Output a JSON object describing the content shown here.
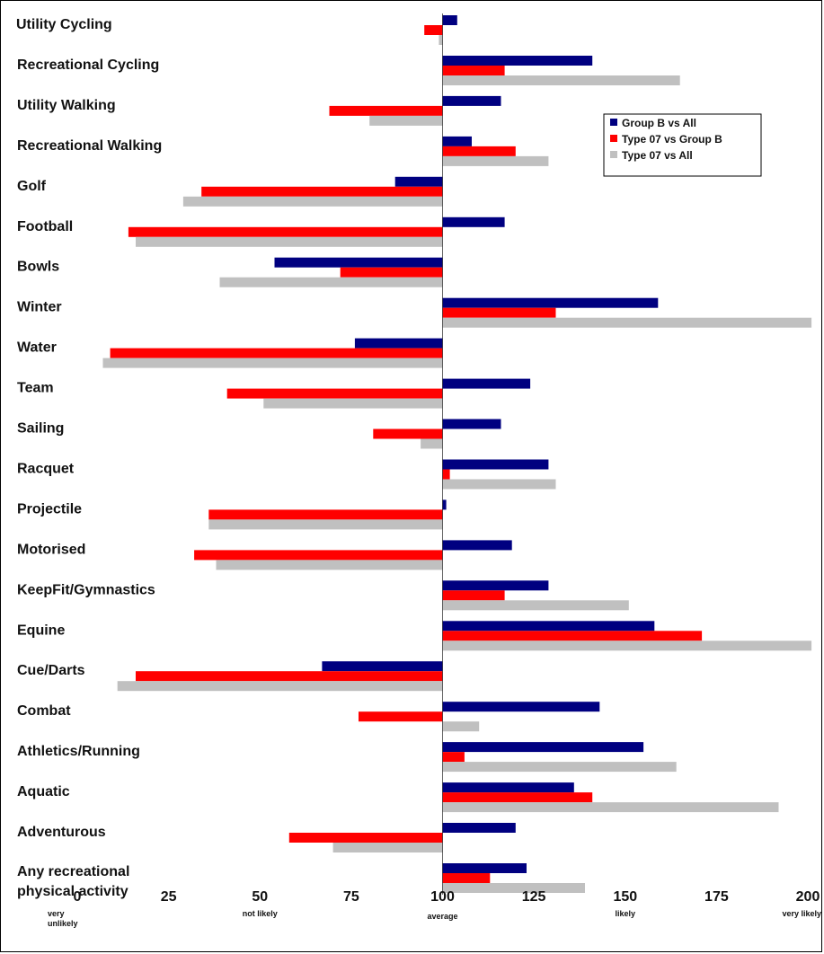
{
  "chart_data": {
    "type": "bar",
    "orientation": "horizontal",
    "baseline": 100,
    "xlim": [
      0,
      200
    ],
    "xticks": [
      "0",
      "25",
      "50",
      "75",
      "100",
      "125",
      "150",
      "175",
      "200"
    ],
    "annotations": [
      {
        "x": 0,
        "text": [
          "very",
          "unlikely"
        ]
      },
      {
        "x": 50,
        "text": [
          "not likely"
        ]
      },
      {
        "x": 100,
        "text": [
          "average"
        ]
      },
      {
        "x": 150,
        "text": [
          "likely"
        ]
      },
      {
        "x": 200,
        "text": [
          "very likely"
        ]
      }
    ],
    "categories": [
      [
        "Utility Cycling"
      ],
      [
        "Recreational Cycling"
      ],
      [
        "Utility Walking"
      ],
      [
        "Recreational Walking"
      ],
      [
        "Golf"
      ],
      [
        "Football"
      ],
      [
        "Bowls"
      ],
      [
        "Winter"
      ],
      [
        "Water"
      ],
      [
        "Team"
      ],
      [
        "Sailing"
      ],
      [
        "Racquet"
      ],
      [
        "Projectile"
      ],
      [
        "Motorised"
      ],
      [
        "KeepFit/Gymnastics"
      ],
      [
        "Equine"
      ],
      [
        "Cue/Darts"
      ],
      [
        "Combat"
      ],
      [
        "Athletics/Running"
      ],
      [
        "Aquatic"
      ],
      [
        "Adventurous"
      ],
      [
        "Any recreational",
        "physical activity"
      ]
    ],
    "series": [
      {
        "name": "Group B vs All",
        "color": "#000080",
        "values": [
          104,
          141,
          116,
          108,
          87,
          117,
          54,
          159,
          76,
          124,
          116,
          129,
          101,
          119,
          129,
          158,
          67,
          143,
          155,
          136,
          120,
          123
        ]
      },
      {
        "name": "Type 07 vs Group B",
        "color": "#ff0000",
        "values": [
          95,
          117,
          69,
          120,
          34,
          14,
          72,
          131,
          9,
          41,
          81,
          102,
          36,
          32,
          117,
          171,
          16,
          77,
          106,
          141,
          58,
          113
        ]
      },
      {
        "name": "Type 07 vs All",
        "color": "#c0c0c0",
        "values": [
          99,
          165,
          80,
          129,
          29,
          16,
          39,
          201,
          7,
          51,
          94,
          131,
          36,
          38,
          151,
          201,
          11,
          110,
          164,
          192,
          70,
          139
        ]
      }
    ],
    "legend_position": "upper-right",
    "grid": false
  }
}
